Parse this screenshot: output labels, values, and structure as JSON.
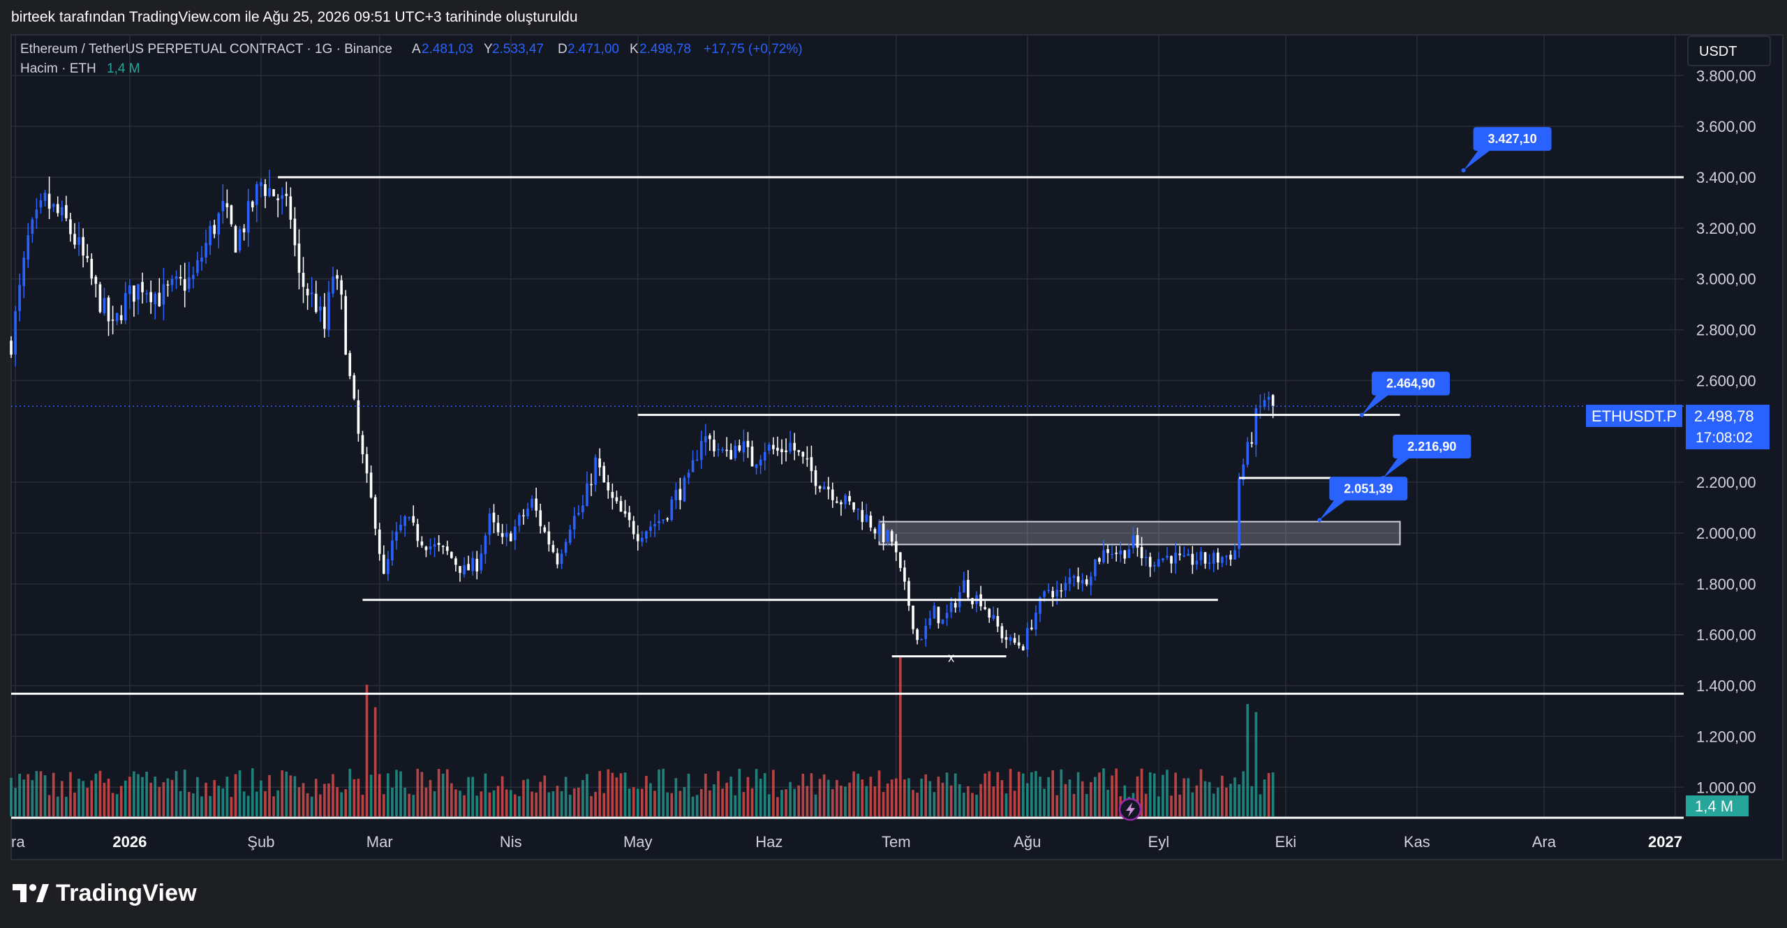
{
  "header": {
    "caption": "birteek tarafından TradingView.com ile Ağu 25, 2026 09:51 UTC+3 tarihinde oluşturuldu"
  },
  "legend": {
    "title": "Ethereum / TetherUS PERPETUAL CONTRACT · 1G · Binance",
    "open_label": "A",
    "open_value": "2.481,03",
    "high_label": "Y",
    "high_value": "2.533,47",
    "low_label": "D",
    "low_value": "2.471,00",
    "close_label": "K",
    "close_value": "2.498,78",
    "change": "+17,75 (+0,72%)",
    "volume_label": "Hacim · ETH",
    "volume_value": "1,4 M"
  },
  "currency_button": "USDT",
  "price_tag": {
    "symbol": "ETHUSDT.P",
    "price": "2.498,78",
    "countdown": "17:08:02"
  },
  "volume_tag": "1,4 M",
  "footer": {
    "brand": "TradingView"
  },
  "colors": {
    "background": "#131722",
    "page": "#1e1f23",
    "grid": "#2a2e39",
    "bull_candle": "#2962ff",
    "bear_candle": "#ffffff",
    "vol_up": "#26a69a",
    "vol_down": "#ef5350",
    "callout": "#2962ff",
    "lines": "#ffffff"
  },
  "chart_data": {
    "type": "candlestick",
    "symbol": "ETHUSDT.P",
    "interval": "1G",
    "exchange": "Binance",
    "y_axis_ticks": [
      "3.800,00",
      "3.600,00",
      "3.400,00",
      "3.200,00",
      "3.000,00",
      "2.800,00",
      "2.600,00",
      "2.200,00",
      "2.000,00",
      "1.800,00",
      "1.600,00",
      "1.400,00",
      "1.200,00",
      "1.000,00"
    ],
    "y_ticks_values": [
      3800,
      3600,
      3400,
      3200,
      3000,
      2800,
      2600,
      2200,
      2000,
      1800,
      1600,
      1400,
      1200,
      1000
    ],
    "x_axis_ticks": [
      "ra",
      "2026",
      "Şub",
      "Mar",
      "Nis",
      "May",
      "Haz",
      "Tem",
      "Ağu",
      "Eyl",
      "Eki",
      "Kas",
      "Ara",
      "2027"
    ],
    "x_axis_bold": [
      false,
      true,
      false,
      false,
      false,
      false,
      false,
      false,
      false,
      false,
      false,
      false,
      false,
      true
    ],
    "x_tick_days": [
      -27,
      0,
      31,
      59,
      90,
      120,
      151,
      181,
      212,
      243,
      273,
      304,
      334,
      365
    ],
    "x_range_days": [
      -28,
      367
    ],
    "y_range": [
      880,
      3960
    ],
    "grid": true,
    "price_path": [
      [
        -28,
        2750
      ],
      [
        -24,
        3150
      ],
      [
        -20,
        3300
      ],
      [
        -15,
        3220
      ],
      [
        -12,
        3120
      ],
      [
        -8,
        2950
      ],
      [
        -4,
        2800
      ],
      [
        -1,
        2920
      ],
      [
        3,
        2980
      ],
      [
        7,
        2930
      ],
      [
        11,
        2970
      ],
      [
        15,
        3000
      ],
      [
        19,
        3180
      ],
      [
        22,
        3270
      ],
      [
        25,
        3150
      ],
      [
        28,
        3250
      ],
      [
        31,
        3380
      ],
      [
        35,
        3320
      ],
      [
        38,
        3250
      ],
      [
        40,
        3000
      ],
      [
        42,
        2950
      ],
      [
        44,
        2900
      ],
      [
        46,
        2800
      ],
      [
        48,
        3020
      ],
      [
        50,
        2900
      ],
      [
        52,
        2600
      ],
      [
        54,
        2380
      ],
      [
        56,
        2200
      ],
      [
        58,
        2050
      ],
      [
        60,
        1820
      ],
      [
        62,
        1950
      ],
      [
        65,
        2050
      ],
      [
        68,
        1990
      ],
      [
        71,
        1950
      ],
      [
        75,
        1920
      ],
      [
        79,
        1850
      ],
      [
        82,
        1880
      ],
      [
        85,
        2050
      ],
      [
        88,
        1960
      ],
      [
        91,
        2020
      ],
      [
        95,
        2120
      ],
      [
        98,
        2000
      ],
      [
        101,
        1900
      ],
      [
        104,
        2040
      ],
      [
        107,
        2100
      ],
      [
        110,
        2280
      ],
      [
        113,
        2150
      ],
      [
        117,
        2050
      ],
      [
        120,
        2000
      ],
      [
        123,
        2030
      ],
      [
        126,
        2060
      ],
      [
        129,
        2150
      ],
      [
        132,
        2200
      ],
      [
        135,
        2380
      ],
      [
        138,
        2350
      ],
      [
        141,
        2300
      ],
      [
        144,
        2360
      ],
      [
        147,
        2280
      ],
      [
        150,
        2340
      ],
      [
        153,
        2320
      ],
      [
        156,
        2350
      ],
      [
        159,
        2280
      ],
      [
        162,
        2220
      ],
      [
        165,
        2180
      ],
      [
        168,
        2130
      ],
      [
        171,
        2100
      ],
      [
        174,
        2060
      ],
      [
        177,
        2000
      ],
      [
        180,
        1970
      ],
      [
        182,
        1840
      ],
      [
        184,
        1720
      ],
      [
        186,
        1580
      ],
      [
        188,
        1620
      ],
      [
        190,
        1690
      ],
      [
        192,
        1650
      ],
      [
        194,
        1700
      ],
      [
        197,
        1800
      ],
      [
        199,
        1750
      ],
      [
        201,
        1740
      ],
      [
        203,
        1680
      ],
      [
        206,
        1600
      ],
      [
        208,
        1570
      ],
      [
        211,
        1560
      ],
      [
        214,
        1690
      ],
      [
        217,
        1780
      ],
      [
        220,
        1760
      ],
      [
        223,
        1850
      ],
      [
        225,
        1800
      ],
      [
        228,
        1890
      ],
      [
        231,
        1940
      ],
      [
        234,
        1920
      ],
      [
        237,
        1960
      ],
      [
        240,
        1890
      ],
      [
        243,
        1900
      ],
      [
        246,
        1910
      ],
      [
        249,
        1880
      ],
      [
        252,
        1900
      ],
      [
        254,
        1890
      ],
      [
        257,
        1900
      ],
      [
        259,
        1910
      ],
      [
        261,
        1930
      ],
      [
        262,
        2220
      ],
      [
        264,
        2320
      ],
      [
        266,
        2450
      ],
      [
        268,
        2530
      ],
      [
        270,
        2498.78
      ]
    ],
    "volume_max_units": 100,
    "volume_highlights": [
      {
        "x": 56,
        "value": 82,
        "dir": "down"
      },
      {
        "x": 58,
        "value": 68,
        "dir": "down"
      },
      {
        "x": 182,
        "value": 100,
        "dir": "down"
      },
      {
        "x": 264,
        "value": 70,
        "dir": "up"
      },
      {
        "x": 266,
        "value": 65,
        "dir": "up"
      }
    ],
    "horizontal_levels": [
      {
        "price": 3400,
        "x1": 35,
        "x2": 367
      },
      {
        "price": 2464.9,
        "x1": 120,
        "x2": 300
      },
      {
        "price": 2216.9,
        "x1": 262,
        "x2": 295
      },
      {
        "price": 1737,
        "x1": 55,
        "x2": 257
      },
      {
        "price": 1515,
        "x1": 180,
        "x2": 207
      },
      {
        "price": 1368,
        "x1": -28,
        "x2": 367
      },
      {
        "price": 880,
        "x1": -28,
        "x2": 367
      }
    ],
    "zone": {
      "price_low": 1955,
      "price_high": 2045,
      "x1": 177,
      "x2": 300
    },
    "callouts": [
      {
        "label": "3.427,10",
        "anchor_x": 315,
        "anchor_price": 3427.1
      },
      {
        "label": "2.464,90",
        "anchor_x": 291,
        "anchor_price": 2464.9
      },
      {
        "label": "2.216,90",
        "anchor_x": 296,
        "anchor_price": 2216.9
      },
      {
        "label": "2.051,39",
        "anchor_x": 281,
        "anchor_price": 2051.39
      }
    ],
    "marker": {
      "label": "x",
      "x": 194,
      "price": 1515
    },
    "last_price": 2498.78
  }
}
